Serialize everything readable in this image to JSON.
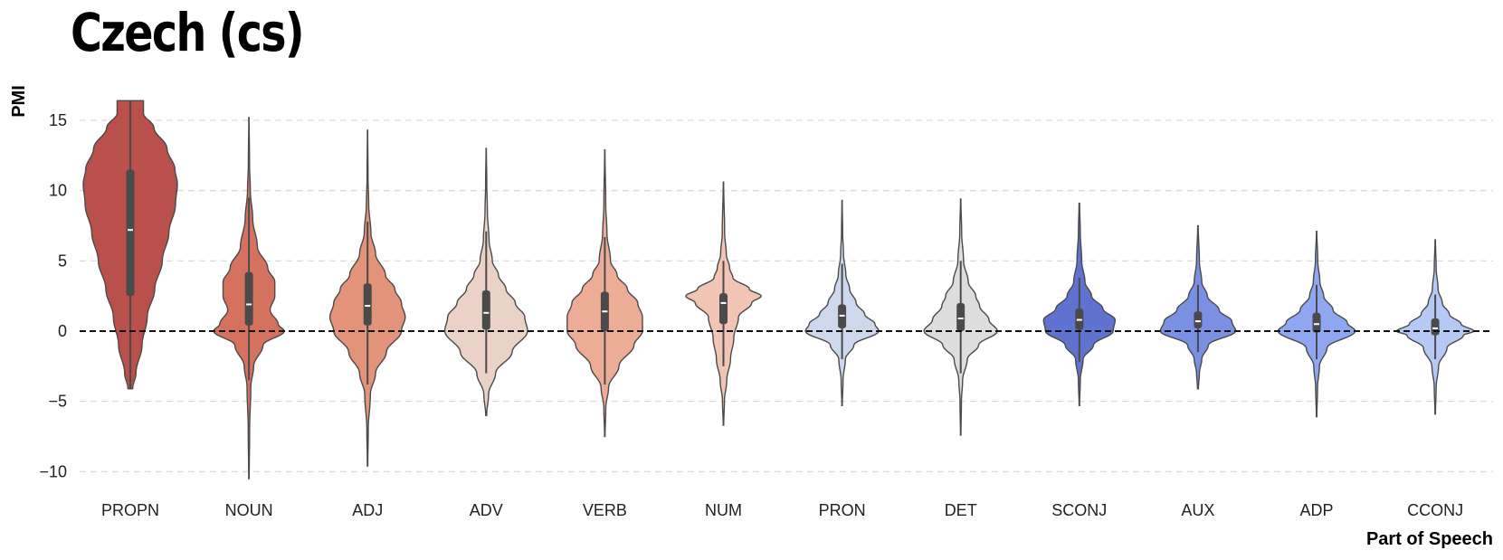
{
  "chart_data": {
    "type": "violin",
    "title": "Czech (cs)",
    "xlabel": "Part of Speech",
    "ylabel": "PMI",
    "ylim": [
      -11,
      16.5
    ],
    "yticks": [
      15,
      10,
      5,
      0,
      -5,
      -10
    ],
    "ytick_labels": [
      "15",
      "10",
      "5",
      "0",
      "−5",
      "−10"
    ],
    "grid": true,
    "reference_line": 0,
    "categories": [
      "PROPN",
      "NOUN",
      "ADJ",
      "ADV",
      "VERB",
      "NUM",
      "PRON",
      "DET",
      "SCONJ",
      "AUX",
      "ADP",
      "CCONJ"
    ],
    "violins": [
      {
        "pos": "PROPN",
        "color": "#b9504c",
        "min": -4.1,
        "max": 16.4,
        "q1": 2.5,
        "median": 7.2,
        "q3": 11.5,
        "whisker_low": -4.1,
        "whisker_high": 16.4,
        "profile": [
          [
            -4.1,
            0.05
          ],
          [
            -3,
            0.12
          ],
          [
            -1,
            0.25
          ],
          [
            1,
            0.36
          ],
          [
            3,
            0.52
          ],
          [
            5,
            0.68
          ],
          [
            7,
            0.82
          ],
          [
            9,
            0.96
          ],
          [
            10.5,
            1.0
          ],
          [
            11.5,
            0.95
          ],
          [
            13,
            0.78
          ],
          [
            14.5,
            0.5
          ],
          [
            15.5,
            0.28
          ],
          [
            16.4,
            0.28
          ]
        ]
      },
      {
        "pos": "NOUN",
        "color": "#d5725f",
        "min": -10.5,
        "max": 15.2,
        "q1": 0.4,
        "median": 1.9,
        "q3": 4.2,
        "whisker_low": -3.5,
        "whisker_high": 9.5,
        "profile": [
          [
            -10.5,
            0.005
          ],
          [
            -7,
            0.015
          ],
          [
            -4,
            0.04
          ],
          [
            -2.5,
            0.1
          ],
          [
            -1,
            0.3
          ],
          [
            0,
            0.75
          ],
          [
            0.5,
            0.62
          ],
          [
            1.5,
            0.45
          ],
          [
            2.5,
            0.55
          ],
          [
            3.5,
            0.55
          ],
          [
            4.5,
            0.4
          ],
          [
            6,
            0.18
          ],
          [
            8,
            0.08
          ],
          [
            10,
            0.03
          ],
          [
            12,
            0.012
          ],
          [
            15.2,
            0.003
          ]
        ]
      },
      {
        "pos": "ADJ",
        "color": "#e2937a",
        "min": -9.6,
        "max": 14.3,
        "q1": 0.4,
        "median": 1.8,
        "q3": 3.4,
        "whisker_low": -3.8,
        "whisker_high": 7.8,
        "profile": [
          [
            -9.6,
            0.005
          ],
          [
            -7,
            0.015
          ],
          [
            -4.5,
            0.06
          ],
          [
            -3,
            0.17
          ],
          [
            -1.5,
            0.4
          ],
          [
            0,
            0.72
          ],
          [
            1,
            0.8
          ],
          [
            2,
            0.72
          ],
          [
            3,
            0.58
          ],
          [
            4,
            0.38
          ],
          [
            5.5,
            0.17
          ],
          [
            7,
            0.07
          ],
          [
            9,
            0.025
          ],
          [
            11,
            0.01
          ],
          [
            14.3,
            0.003
          ]
        ]
      },
      {
        "pos": "ADV",
        "color": "#ead3c6",
        "min": -6.0,
        "max": 13.0,
        "q1": 0.1,
        "median": 1.3,
        "q3": 2.9,
        "whisker_low": -3.0,
        "whisker_high": 7.1,
        "profile": [
          [
            -6,
            0.01
          ],
          [
            -4.5,
            0.05
          ],
          [
            -3,
            0.2
          ],
          [
            -1.5,
            0.55
          ],
          [
            0,
            0.88
          ],
          [
            1,
            0.82
          ],
          [
            2,
            0.62
          ],
          [
            3,
            0.42
          ],
          [
            4,
            0.26
          ],
          [
            5,
            0.13
          ],
          [
            6.5,
            0.06
          ],
          [
            8.5,
            0.025
          ],
          [
            10.5,
            0.012
          ],
          [
            13,
            0.003
          ]
        ]
      },
      {
        "pos": "VERB",
        "color": "#edac96",
        "min": -7.5,
        "max": 12.9,
        "q1": 0.0,
        "median": 1.4,
        "q3": 2.8,
        "whisker_low": -3.8,
        "whisker_high": 6.7,
        "profile": [
          [
            -7.5,
            0.005
          ],
          [
            -5.5,
            0.02
          ],
          [
            -4,
            0.08
          ],
          [
            -2.5,
            0.3
          ],
          [
            -1,
            0.62
          ],
          [
            0,
            0.8
          ],
          [
            1,
            0.8
          ],
          [
            2,
            0.7
          ],
          [
            3,
            0.48
          ],
          [
            4,
            0.26
          ],
          [
            5,
            0.12
          ],
          [
            7,
            0.045
          ],
          [
            9,
            0.02
          ],
          [
            12.9,
            0.003
          ]
        ]
      },
      {
        "pos": "NUM",
        "color": "#f2c4b3",
        "min": -6.7,
        "max": 10.6,
        "q1": 0.5,
        "median": 2.0,
        "q3": 2.7,
        "whisker_low": -2.5,
        "whisker_high": 5.0,
        "profile": [
          [
            -6.7,
            0.005
          ],
          [
            -5,
            0.02
          ],
          [
            -3.5,
            0.07
          ],
          [
            -2,
            0.15
          ],
          [
            -0.5,
            0.22
          ],
          [
            1,
            0.32
          ],
          [
            2,
            0.6
          ],
          [
            2.5,
            0.8
          ],
          [
            3,
            0.55
          ],
          [
            3.8,
            0.2
          ],
          [
            4.5,
            0.13
          ],
          [
            5.5,
            0.06
          ],
          [
            7,
            0.025
          ],
          [
            10.6,
            0.004
          ]
        ]
      },
      {
        "pos": "PRON",
        "color": "#cdd8ec",
        "min": -5.3,
        "max": 9.3,
        "q1": 0.2,
        "median": 1.1,
        "q3": 1.9,
        "whisker_low": -2.0,
        "whisker_high": 4.8,
        "profile": [
          [
            -5.3,
            0.005
          ],
          [
            -3.5,
            0.02
          ],
          [
            -2,
            0.07
          ],
          [
            -1,
            0.25
          ],
          [
            0,
            0.78
          ],
          [
            0.5,
            0.7
          ],
          [
            1.2,
            0.48
          ],
          [
            2,
            0.3
          ],
          [
            3,
            0.16
          ],
          [
            4,
            0.08
          ],
          [
            5.5,
            0.03
          ],
          [
            7,
            0.012
          ],
          [
            9.3,
            0.003
          ]
        ]
      },
      {
        "pos": "DET",
        "color": "#dddddd",
        "min": -7.4,
        "max": 9.4,
        "q1": 0.0,
        "median": 0.9,
        "q3": 2.0,
        "whisker_low": -3.0,
        "whisker_high": 5.0,
        "profile": [
          [
            -7.4,
            0.005
          ],
          [
            -5,
            0.015
          ],
          [
            -3.5,
            0.04
          ],
          [
            -2,
            0.14
          ],
          [
            -1,
            0.38
          ],
          [
            0,
            0.78
          ],
          [
            0.8,
            0.6
          ],
          [
            1.8,
            0.4
          ],
          [
            2.5,
            0.32
          ],
          [
            3.5,
            0.16
          ],
          [
            5,
            0.06
          ],
          [
            7,
            0.02
          ],
          [
            9.4,
            0.004
          ]
        ]
      },
      {
        "pos": "SCONJ",
        "color": "#5f72d0",
        "min": -5.3,
        "max": 9.1,
        "q1": 0.1,
        "median": 0.8,
        "q3": 1.6,
        "whisker_low": -2.2,
        "whisker_high": 3.8,
        "profile": [
          [
            -5.3,
            0.005
          ],
          [
            -3.5,
            0.02
          ],
          [
            -2,
            0.08
          ],
          [
            -1,
            0.3
          ],
          [
            0,
            0.72
          ],
          [
            0.8,
            0.76
          ],
          [
            1.6,
            0.5
          ],
          [
            2.5,
            0.26
          ],
          [
            3.5,
            0.12
          ],
          [
            5,
            0.05
          ],
          [
            7,
            0.02
          ],
          [
            9.1,
            0.006
          ]
        ]
      },
      {
        "pos": "AUX",
        "color": "#7a91e3",
        "min": -4.1,
        "max": 7.5,
        "q1": 0.2,
        "median": 0.7,
        "q3": 1.4,
        "whisker_low": -1.5,
        "whisker_high": 3.3,
        "profile": [
          [
            -4.1,
            0.01
          ],
          [
            -3,
            0.03
          ],
          [
            -2,
            0.08
          ],
          [
            -1,
            0.22
          ],
          [
            0,
            0.8
          ],
          [
            0.7,
            0.72
          ],
          [
            1.5,
            0.45
          ],
          [
            2.5,
            0.2
          ],
          [
            3.5,
            0.08
          ],
          [
            5,
            0.03
          ],
          [
            7.5,
            0.005
          ]
        ]
      },
      {
        "pos": "ADP",
        "color": "#8ea7f0",
        "min": -6.1,
        "max": 7.1,
        "q1": -0.1,
        "median": 0.5,
        "q3": 1.3,
        "whisker_low": -2.0,
        "whisker_high": 3.3,
        "profile": [
          [
            -6.1,
            0.005
          ],
          [
            -4,
            0.02
          ],
          [
            -2.5,
            0.06
          ],
          [
            -1.2,
            0.22
          ],
          [
            0,
            0.82
          ],
          [
            0.6,
            0.65
          ],
          [
            1.5,
            0.35
          ],
          [
            2.5,
            0.15
          ],
          [
            3.5,
            0.07
          ],
          [
            5,
            0.025
          ],
          [
            7.1,
            0.004
          ]
        ]
      },
      {
        "pos": "CCONJ",
        "color": "#b6c9f5",
        "min": -5.9,
        "max": 6.5,
        "q1": -0.3,
        "median": 0.2,
        "q3": 0.9,
        "whisker_low": -2.0,
        "whisker_high": 2.6,
        "profile": [
          [
            -5.9,
            0.005
          ],
          [
            -4,
            0.02
          ],
          [
            -2.5,
            0.07
          ],
          [
            -1.2,
            0.25
          ],
          [
            -0.3,
            0.6
          ],
          [
            0,
            0.82
          ],
          [
            0.5,
            0.55
          ],
          [
            1.2,
            0.3
          ],
          [
            2,
            0.15
          ],
          [
            3,
            0.06
          ],
          [
            4.5,
            0.02
          ],
          [
            6.5,
            0.004
          ]
        ]
      }
    ]
  }
}
